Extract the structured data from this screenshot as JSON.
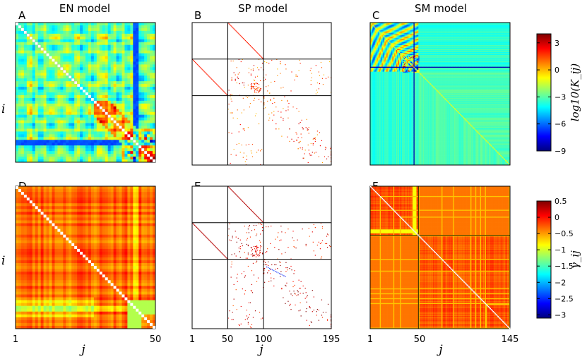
{
  "chart_data": [
    {
      "type": "heatmap",
      "panel": "A",
      "title": "EN model",
      "ylabel": "i",
      "n": 50,
      "block_bounds": [],
      "colorbar": "log10K",
      "description_scale": "log10(K_ij) coupling matrix"
    },
    {
      "type": "heatmap",
      "panel": "B",
      "title": "SP model",
      "n": 195,
      "block_bounds": [
        50,
        100
      ],
      "colorbar": "log10K"
    },
    {
      "type": "heatmap",
      "panel": "C",
      "title": "SM model",
      "n": 145,
      "block_bounds": [
        50
      ],
      "colorbar": "log10K"
    },
    {
      "type": "heatmap",
      "panel": "D",
      "ylabel": "i",
      "xlabel": "j",
      "n": 50,
      "block_bounds": [],
      "colorbar": "gamma",
      "xticks": [
        "1",
        "50"
      ]
    },
    {
      "type": "heatmap",
      "panel": "E",
      "xlabel": "j",
      "n": 195,
      "block_bounds": [
        50,
        100
      ],
      "colorbar": "gamma",
      "xticks": [
        "1",
        "50",
        "100",
        "195"
      ]
    },
    {
      "type": "heatmap",
      "panel": "F",
      "xlabel": "j",
      "n": 145,
      "block_bounds": [
        50
      ],
      "colorbar": "gamma",
      "xticks": [
        "1",
        "50",
        "145"
      ]
    }
  ],
  "colorbars": {
    "log10K": {
      "label": "log10(K_ij)",
      "min": -9,
      "max": 4,
      "ticks": [
        "3",
        "0",
        "−3",
        "−6",
        "−9"
      ],
      "tick_values": [
        3,
        0,
        -3,
        -6,
        -9
      ]
    },
    "gamma": {
      "label": "γ_ij",
      "min": -3.1,
      "max": 0.5,
      "ticks": [
        "0.5",
        "0",
        "−0.5",
        "−1",
        "−1.5",
        "−2",
        "−2.5",
        "−3"
      ],
      "tick_values": [
        0.5,
        0,
        -0.5,
        -1,
        -1.5,
        -2,
        -2.5,
        -3
      ]
    }
  },
  "colormap": [
    "#00007f",
    "#0000ff",
    "#007fff",
    "#00ffff",
    "#7fff7f",
    "#ffff00",
    "#ff7f00",
    "#ff0000",
    "#7f0000"
  ]
}
